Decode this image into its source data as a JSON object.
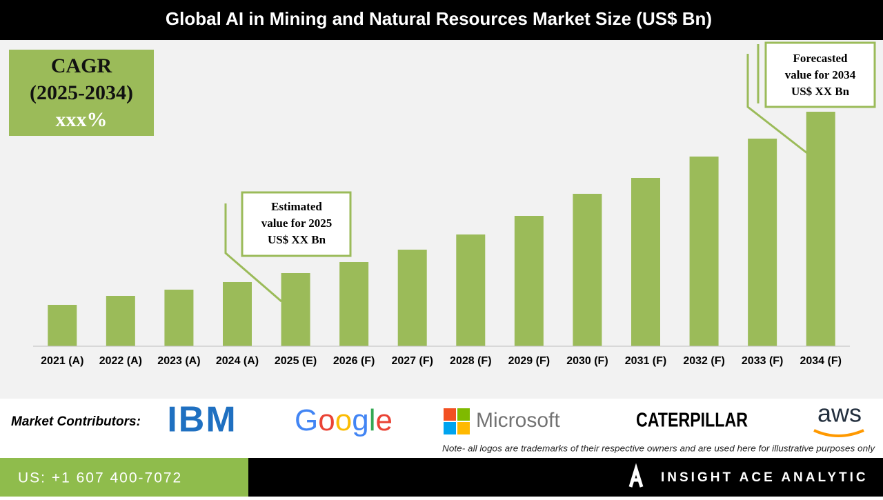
{
  "chart_data": {
    "type": "bar",
    "title": "Global AI in Mining and Natural Resources Market  Size (US$ Bn)",
    "categories": [
      "2021 (A)",
      "2022 (A)",
      "2023 (A)",
      "2024 (A)",
      "2025 (E)",
      "2026 (F)",
      "2027 (F)",
      "2028 (F)",
      "2029 (F)",
      "2030 (F)",
      "2031 (F)",
      "2032 (F)",
      "2033 (F)",
      "2034 (F)"
    ],
    "values": [
      60,
      73,
      82,
      93,
      106,
      122,
      140,
      162,
      189,
      221,
      244,
      275,
      301,
      340
    ],
    "color": "#9bbb59",
    "ylim": [
      0,
      440
    ],
    "cagr": [
      "CAGR",
      "(2025-2034)",
      "xxx%"
    ],
    "callouts": [
      [
        "Estimated",
        "value for 2025",
        "US$ XX Bn"
      ],
      [
        "Forecasted",
        "value for 2034",
        "US$ XX Bn"
      ]
    ]
  },
  "contributors": {
    "label": "Market Contributors:",
    "logos": [
      "IBM",
      "Google",
      "Microsoft",
      "CATERPILLAR",
      "aws"
    ],
    "note": "Note- all logos are trademarks of their respective owners and are used here for illustrative purposes only"
  },
  "footer": {
    "phone": "US: +1 607 400-7072",
    "brand": "INSIGHT ACE ANALYTIC"
  }
}
